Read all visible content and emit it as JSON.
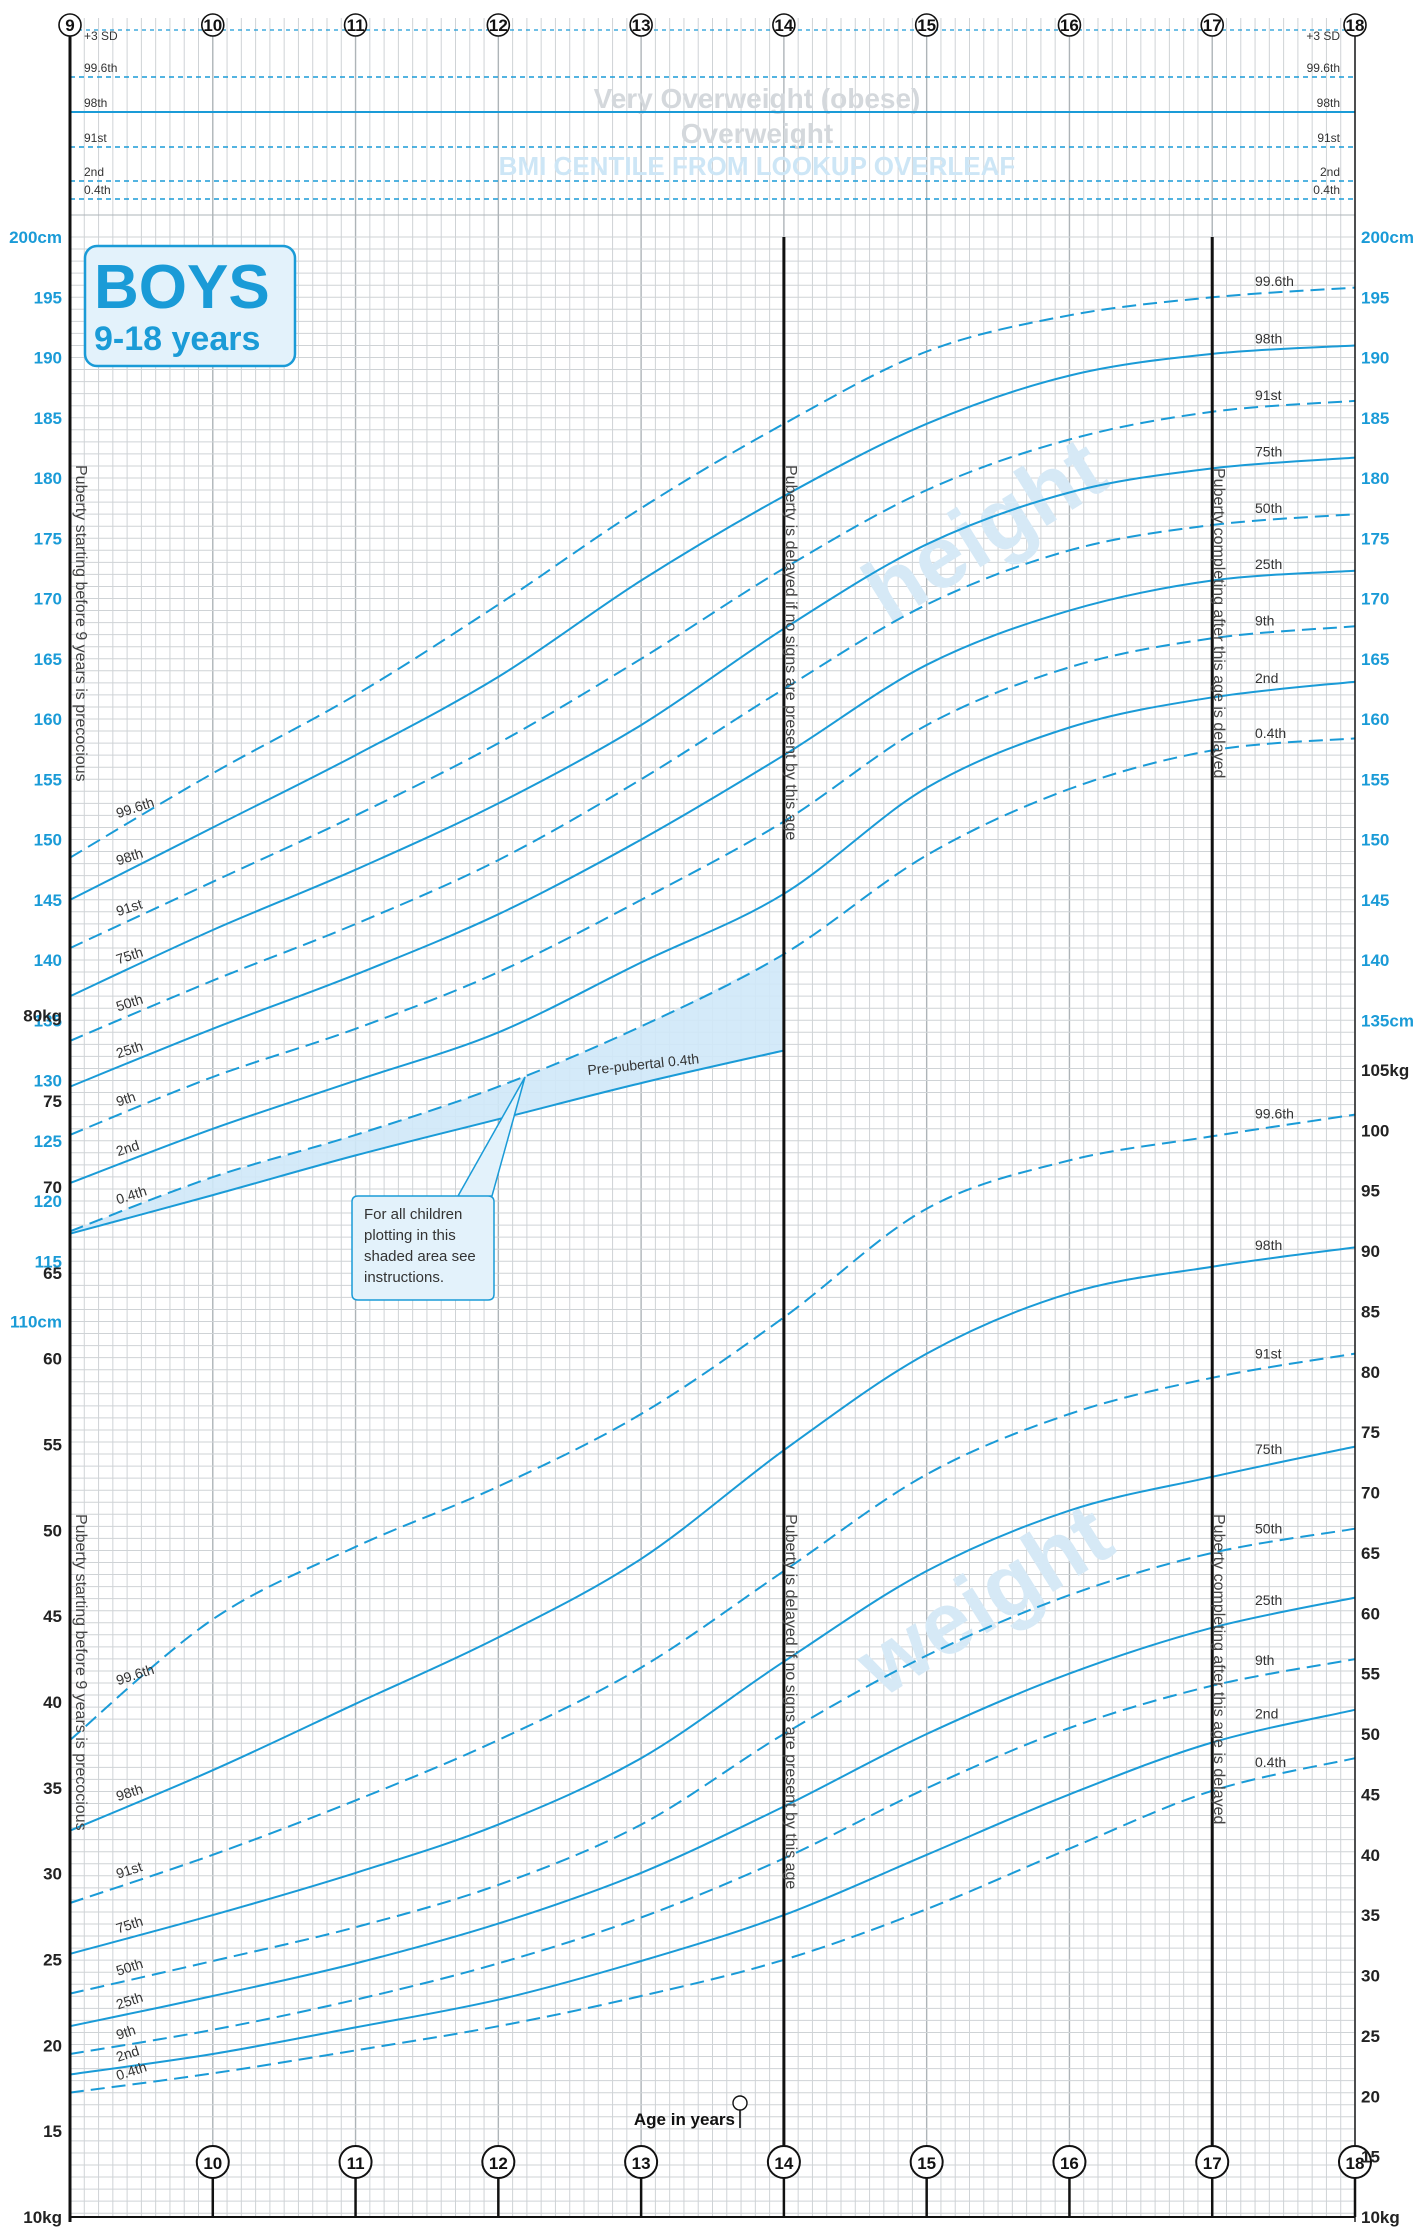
{
  "title": {
    "main": "BOYS",
    "sub": "9-18 years"
  },
  "colors": {
    "curve": "#1a9bd7",
    "shade": "#cfe8f8",
    "grid": "#cfd3d6",
    "axis": "#111111"
  },
  "bmi_section": {
    "heading_obese": "Very Overweight (obese)",
    "heading_overweight": "Overweight",
    "heading_lookup": "BMI CENTILE FROM LOOKUP OVERLEAF",
    "sd_label": "+3 SD",
    "lines": [
      {
        "label": "99.6th",
        "style": "dashed"
      },
      {
        "label": "98th",
        "style": "solid"
      },
      {
        "label": "91st",
        "style": "dashed"
      },
      {
        "label": "2nd",
        "style": "dashed"
      },
      {
        "label": "0.4th",
        "style": "dashed"
      }
    ]
  },
  "axis": {
    "age_title": "Age in years",
    "height_unit_top": "200cm",
    "height_unit_bottom_left": "110cm",
    "height_unit_bottom_right": "135cm",
    "weight_unit_top_left": "80kg",
    "weight_unit_top_right": "105kg",
    "weight_unit_bottom": "10kg"
  },
  "annotations": {
    "puberty_early": "Puberty starting before 9 years is precocious",
    "puberty_delayed_14": "Puberty is delayed if no signs are present by this age",
    "puberty_delayed_17": "Puberty completing after this age is delayed",
    "prepubertal": "Pre-pubertal 0.4th",
    "shaded_note": [
      "For all children",
      "plotting in this",
      "shaded area see",
      "instructions."
    ],
    "watermark_height": "height",
    "watermark_weight": "weight"
  },
  "chart_data": [
    {
      "type": "line",
      "title": "height",
      "xlabel": "Age in years",
      "ylabel": "",
      "xlim": [
        9,
        18
      ],
      "ylim_left": [
        110,
        200
      ],
      "ylim_right": [
        110,
        200
      ],
      "x_ticks": [
        9,
        10,
        11,
        12,
        13,
        14,
        15,
        16,
        17,
        18
      ],
      "y_ticks_left": [
        110,
        115,
        120,
        125,
        130,
        135,
        140,
        145,
        150,
        155,
        160,
        165,
        170,
        175,
        180,
        185,
        190,
        195,
        200
      ],
      "y_ticks_right": [
        135,
        140,
        145,
        150,
        155,
        160,
        165,
        170,
        175,
        180,
        185,
        190,
        195,
        200
      ],
      "x": [
        9,
        10,
        11,
        12,
        13,
        14,
        15,
        16,
        17,
        18
      ],
      "series": [
        {
          "name": "99.6th",
          "dashed": true,
          "values": [
            148.5,
            155.5,
            162,
            169.5,
            177.5,
            184.5,
            190.5,
            193.5,
            195,
            195.8
          ]
        },
        {
          "name": "98th",
          "dashed": false,
          "values": [
            145,
            151,
            157,
            163.5,
            171.5,
            178.5,
            184.5,
            188.5,
            190.3,
            191
          ]
        },
        {
          "name": "91st",
          "dashed": true,
          "values": [
            141,
            146.5,
            152,
            158,
            165,
            172.5,
            179,
            183.2,
            185.5,
            186.4
          ]
        },
        {
          "name": "75th",
          "dashed": false,
          "values": [
            137,
            142.5,
            147.5,
            153,
            159.5,
            167.5,
            174.5,
            178.8,
            180.8,
            181.7
          ]
        },
        {
          "name": "50th",
          "dashed": true,
          "values": [
            133.3,
            138.3,
            143,
            148.3,
            155,
            162.5,
            169.5,
            174,
            176.1,
            177
          ]
        },
        {
          "name": "25th",
          "dashed": false,
          "values": [
            129.5,
            134.3,
            138.8,
            143.8,
            150,
            157,
            164.5,
            169,
            171.5,
            172.3
          ]
        },
        {
          "name": "9th",
          "dashed": true,
          "values": [
            125.5,
            130.3,
            134.3,
            139,
            145,
            151.5,
            159.5,
            164.3,
            166.7,
            167.7
          ]
        },
        {
          "name": "2nd",
          "dashed": false,
          "values": [
            121.5,
            126,
            130,
            134,
            139.8,
            145.5,
            154.3,
            159.3,
            161.8,
            163.1
          ]
        },
        {
          "name": "0.4th",
          "dashed": true,
          "values": [
            117.5,
            122,
            125.5,
            129.5,
            134.5,
            140.5,
            148.7,
            154.2,
            157.4,
            158.4
          ]
        },
        {
          "name": "Pre-pubertal 0.4th",
          "dashed": false,
          "values": [
            117.3,
            120.5,
            123.8,
            126.8,
            129.8,
            132.5,
            null,
            null,
            null,
            null
          ]
        }
      ]
    },
    {
      "type": "line",
      "title": "weight",
      "xlabel": "Age in years",
      "ylabel": "",
      "xlim": [
        9,
        18
      ],
      "ylim_left": [
        10,
        80
      ],
      "ylim_right": [
        10,
        105
      ],
      "x_ticks": [
        9,
        10,
        11,
        12,
        13,
        14,
        15,
        16,
        17,
        18
      ],
      "y_ticks_left": [
        10,
        15,
        20,
        25,
        30,
        35,
        40,
        45,
        50,
        55,
        60,
        65,
        70,
        75,
        80
      ],
      "y_ticks_right": [
        10,
        15,
        20,
        25,
        30,
        35,
        40,
        45,
        50,
        55,
        60,
        65,
        70,
        75,
        80,
        85,
        90,
        95,
        100,
        105
      ],
      "x": [
        9,
        10,
        11,
        12,
        13,
        14,
        15,
        16,
        17,
        18
      ],
      "series": [
        {
          "name": "99.6th",
          "dashed": true,
          "values": [
            49.5,
            59.5,
            65.5,
            70.5,
            76.5,
            84.5,
            93.5,
            97.5,
            99.5,
            101.3
          ]
        },
        {
          "name": "98th",
          "dashed": false,
          "values": [
            42,
            47,
            52.5,
            58,
            64.5,
            73.5,
            81.5,
            86.5,
            88.7,
            90.3
          ]
        },
        {
          "name": "91st",
          "dashed": true,
          "values": [
            36,
            40,
            44.5,
            49.5,
            55.5,
            63.5,
            71.5,
            76.5,
            79.5,
            81.5
          ]
        },
        {
          "name": "75th",
          "dashed": false,
          "values": [
            31.8,
            35,
            38.5,
            42.5,
            48,
            56,
            63.5,
            68.5,
            71.3,
            73.8
          ]
        },
        {
          "name": "50th",
          "dashed": true,
          "values": [
            28.5,
            31.2,
            34,
            37.5,
            42.5,
            50,
            56.5,
            61.5,
            65,
            67
          ]
        },
        {
          "name": "25th",
          "dashed": false,
          "values": [
            25.8,
            28.3,
            31,
            34.3,
            38.5,
            44,
            50,
            55,
            58.8,
            61.3
          ]
        },
        {
          "name": "9th",
          "dashed": true,
          "values": [
            23.5,
            25.5,
            28,
            31,
            34.8,
            39.7,
            45.5,
            50.5,
            54,
            56.2
          ]
        },
        {
          "name": "2nd",
          "dashed": false,
          "values": [
            21.8,
            23.5,
            25.7,
            28,
            31.2,
            35,
            40,
            45,
            49.3,
            52
          ]
        },
        {
          "name": "0.4th",
          "dashed": true,
          "values": [
            20.3,
            21.9,
            23.8,
            25.8,
            28.3,
            31.3,
            35.5,
            40.5,
            45.3,
            48
          ]
        }
      ]
    }
  ]
}
